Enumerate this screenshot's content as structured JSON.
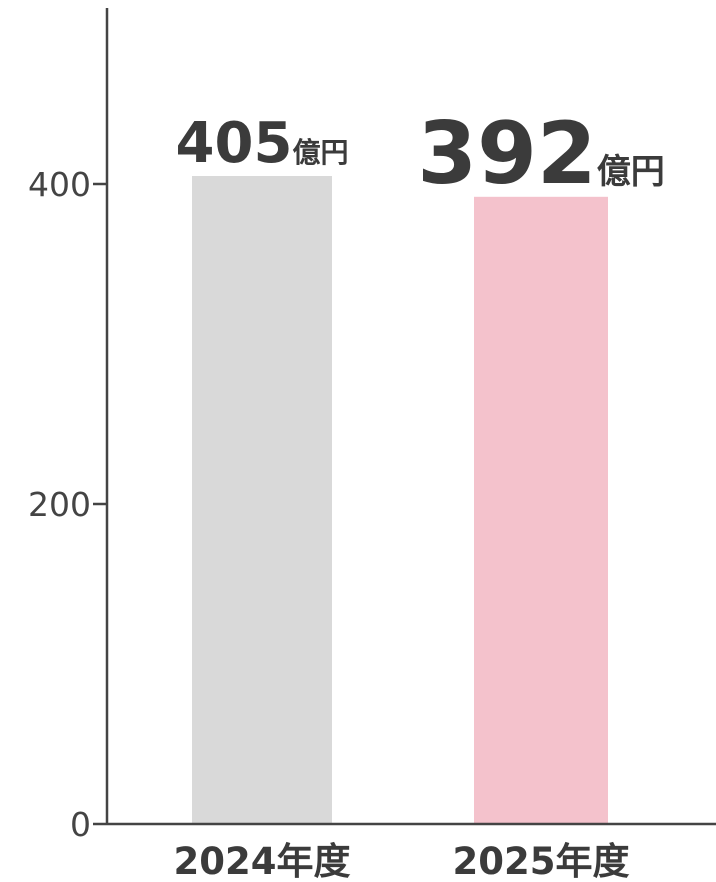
{
  "chart_data": {
    "type": "bar",
    "categories": [
      "2024年度",
      "2025年度"
    ],
    "values": [
      405,
      392
    ],
    "value_labels": [
      "405",
      "392"
    ],
    "value_unit": "億円",
    "bar_colors": [
      "#d9d9d9",
      "#f4c2cc"
    ],
    "y_ticks": [
      "0",
      "200",
      "400"
    ],
    "ylim": [
      0,
      520
    ],
    "axis_color": "#444444",
    "text_color": "#3b3b3b",
    "grid": false,
    "title": "",
    "xlabel": "",
    "ylabel": ""
  }
}
